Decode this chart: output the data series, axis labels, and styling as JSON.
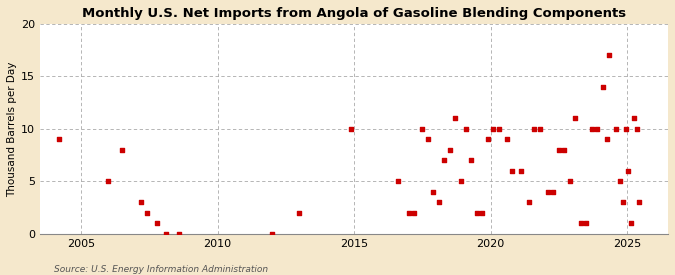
{
  "title": "Monthly U.S. Net Imports from Angola of Gasoline Blending Components",
  "ylabel": "Thousand Barrels per Day",
  "source": "Source: U.S. Energy Information Administration",
  "fig_background_color": "#f5e8cc",
  "plot_background_color": "#ffffff",
  "dot_color": "#cc0000",
  "ylim": [
    0,
    20
  ],
  "yticks": [
    0,
    5,
    10,
    15,
    20
  ],
  "xlim": [
    2003.5,
    2026.5
  ],
  "xticks": [
    2005,
    2010,
    2015,
    2020,
    2025
  ],
  "grid_color": "#aaaaaa",
  "points": [
    [
      2004.2,
      9
    ],
    [
      2006.0,
      5
    ],
    [
      2006.5,
      8
    ],
    [
      2007.2,
      3
    ],
    [
      2007.4,
      2
    ],
    [
      2007.8,
      1
    ],
    [
      2008.1,
      0
    ],
    [
      2008.6,
      0
    ],
    [
      2012.0,
      0
    ],
    [
      2013.0,
      2
    ],
    [
      2014.9,
      10
    ],
    [
      2016.6,
      5
    ],
    [
      2017.0,
      2
    ],
    [
      2017.2,
      2
    ],
    [
      2017.5,
      10
    ],
    [
      2017.7,
      9
    ],
    [
      2017.9,
      4
    ],
    [
      2018.1,
      3
    ],
    [
      2018.3,
      7
    ],
    [
      2018.5,
      8
    ],
    [
      2018.7,
      11
    ],
    [
      2018.9,
      5
    ],
    [
      2019.1,
      10
    ],
    [
      2019.3,
      7
    ],
    [
      2019.5,
      2
    ],
    [
      2019.7,
      2
    ],
    [
      2019.9,
      9
    ],
    [
      2020.1,
      10
    ],
    [
      2020.3,
      10
    ],
    [
      2020.6,
      9
    ],
    [
      2020.8,
      6
    ],
    [
      2021.1,
      6
    ],
    [
      2021.4,
      3
    ],
    [
      2021.6,
      10
    ],
    [
      2021.8,
      10
    ],
    [
      2022.1,
      4
    ],
    [
      2022.3,
      4
    ],
    [
      2022.5,
      8
    ],
    [
      2022.7,
      8
    ],
    [
      2022.9,
      5
    ],
    [
      2023.1,
      11
    ],
    [
      2023.3,
      1
    ],
    [
      2023.5,
      1
    ],
    [
      2023.7,
      10
    ],
    [
      2023.9,
      10
    ],
    [
      2024.1,
      14
    ],
    [
      2024.25,
      9
    ],
    [
      2024.35,
      17
    ],
    [
      2024.6,
      10
    ],
    [
      2024.75,
      5
    ],
    [
      2024.85,
      3
    ],
    [
      2024.95,
      10
    ],
    [
      2025.05,
      6
    ],
    [
      2025.15,
      1
    ],
    [
      2025.25,
      11
    ],
    [
      2025.35,
      10
    ],
    [
      2025.45,
      3
    ]
  ]
}
